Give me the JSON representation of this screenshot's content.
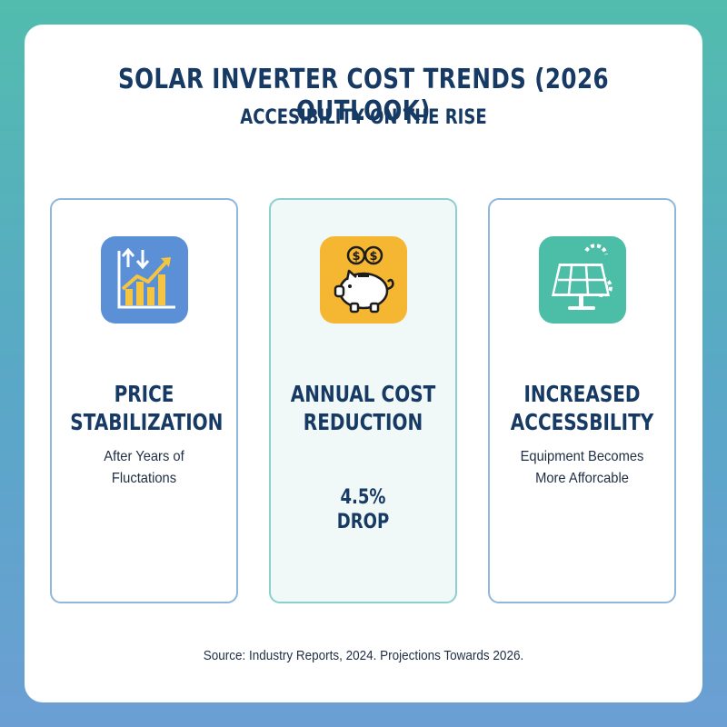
{
  "header": {
    "title": "SOLAR INVERTER COST TRENDS (2026 OUTLOOK)",
    "subtitle": "ACCESIBILITY ON THE RISE"
  },
  "panels": [
    {
      "icon": "trend-chart-icon",
      "icon_bg": "#5b8fd6",
      "heading_lines": [
        "PRICE",
        "STABILIZATION"
      ],
      "desc_lines": [
        "After Years of",
        "Fluctations"
      ]
    },
    {
      "icon": "piggy-bank-icon",
      "icon_bg": "#f5b731",
      "heading_lines": [
        "ANNUAL COST",
        "REDUCTION"
      ],
      "stat_lines": [
        "4.5%",
        "DROP"
      ]
    },
    {
      "icon": "solar-panel-icon",
      "icon_bg": "#4cbea8",
      "heading_lines": [
        "INCREASED",
        "ACCESSBILITY"
      ],
      "desc_lines": [
        "Equipment Becomes",
        "More Afforcable"
      ]
    }
  ],
  "footer": {
    "source": "Source: Industry Reports, 2024. Projections Towards 2026."
  },
  "colors": {
    "title": "#163a63",
    "panel_border": "#8fb6dc",
    "highlight_panel_bg": "#f0f8f8"
  }
}
